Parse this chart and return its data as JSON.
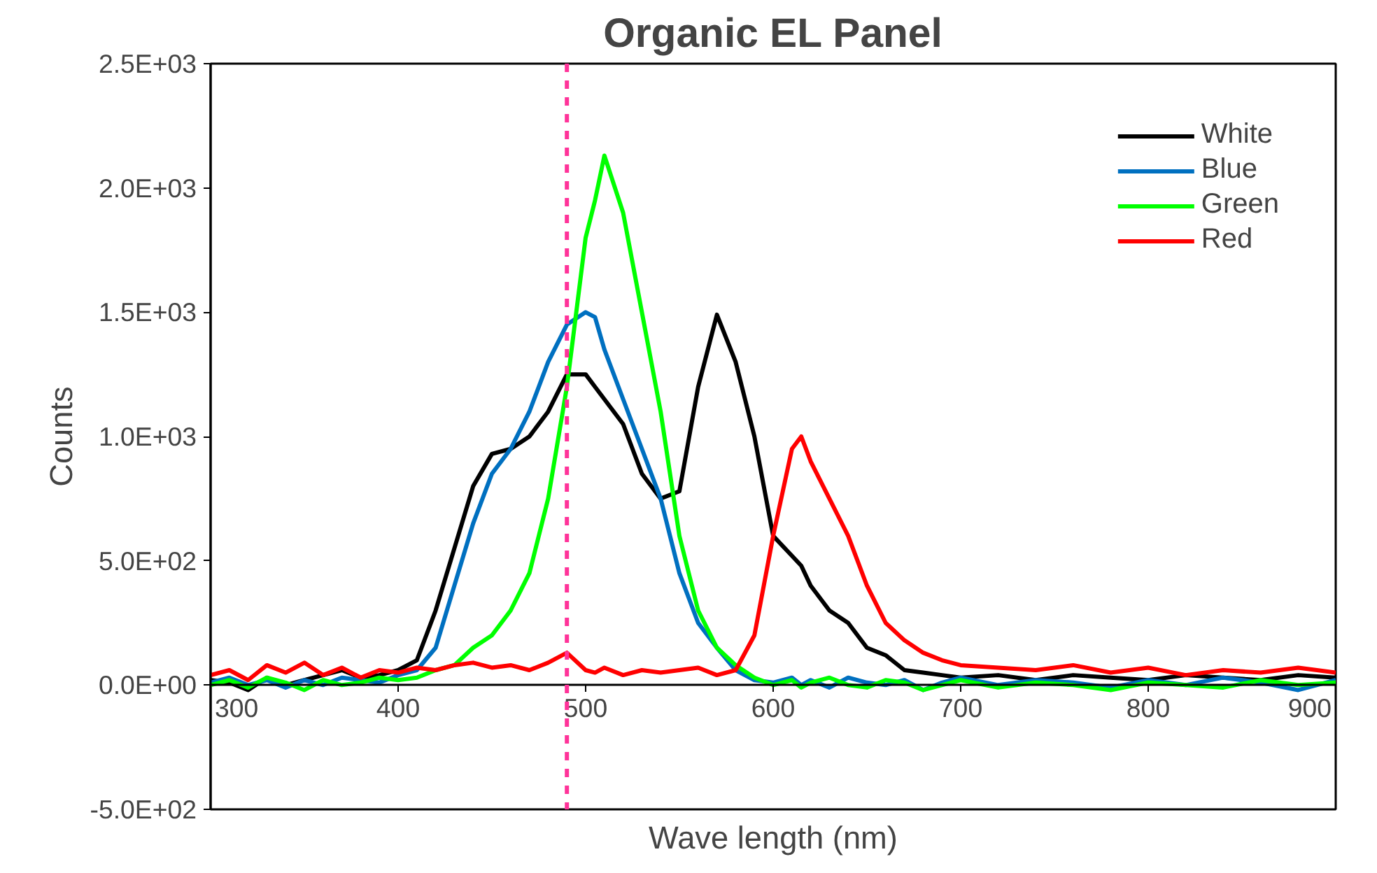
{
  "chart_data": {
    "type": "line",
    "title": "Organic EL Panel",
    "xlabel": "Wave length (nm)",
    "ylabel": "Counts",
    "x": [
      300,
      310,
      320,
      330,
      340,
      350,
      360,
      370,
      380,
      390,
      400,
      410,
      420,
      430,
      440,
      450,
      460,
      470,
      480,
      490,
      500,
      505,
      510,
      520,
      530,
      540,
      550,
      560,
      570,
      580,
      590,
      600,
      610,
      615,
      620,
      630,
      640,
      650,
      660,
      670,
      680,
      690,
      700,
      720,
      740,
      760,
      780,
      800,
      820,
      840,
      860,
      880,
      900
    ],
    "series": [
      {
        "name": "White",
        "color": "#000000",
        "values": [
          20,
          10,
          -20,
          30,
          0,
          20,
          40,
          60,
          30,
          40,
          60,
          100,
          300,
          550,
          800,
          930,
          950,
          1000,
          1100,
          1250,
          1250,
          1200,
          1150,
          1050,
          850,
          750,
          780,
          1200,
          1490,
          1300,
          1000,
          600,
          520,
          480,
          400,
          300,
          250,
          150,
          120,
          60,
          50,
          40,
          30,
          40,
          20,
          40,
          30,
          20,
          40,
          30,
          20,
          40,
          30
        ]
      },
      {
        "name": "Blue",
        "color": "#0070c0",
        "values": [
          10,
          30,
          0,
          20,
          -10,
          20,
          0,
          30,
          20,
          10,
          40,
          60,
          150,
          400,
          650,
          850,
          950,
          1100,
          1300,
          1450,
          1500,
          1480,
          1350,
          1150,
          950,
          750,
          450,
          250,
          150,
          60,
          20,
          10,
          30,
          0,
          20,
          -10,
          30,
          10,
          0,
          20,
          -20,
          10,
          30,
          0,
          20,
          10,
          -10,
          20,
          0,
          30,
          10,
          -20,
          20
        ]
      },
      {
        "name": "Green",
        "color": "#00ff00",
        "values": [
          0,
          20,
          -10,
          30,
          10,
          -20,
          20,
          0,
          10,
          30,
          20,
          30,
          60,
          80,
          150,
          200,
          300,
          450,
          750,
          1200,
          1800,
          1950,
          2130,
          1900,
          1500,
          1100,
          600,
          300,
          150,
          80,
          30,
          0,
          20,
          -10,
          10,
          30,
          0,
          -10,
          20,
          10,
          -20,
          0,
          20,
          -10,
          10,
          0,
          -20,
          10,
          0,
          -10,
          20,
          0,
          10
        ]
      },
      {
        "name": "Red",
        "color": "#ff0000",
        "values": [
          40,
          60,
          20,
          80,
          50,
          90,
          40,
          70,
          30,
          60,
          50,
          70,
          60,
          80,
          90,
          70,
          80,
          60,
          90,
          130,
          60,
          50,
          70,
          40,
          60,
          50,
          60,
          70,
          40,
          60,
          200,
          600,
          950,
          1000,
          900,
          750,
          600,
          400,
          250,
          180,
          130,
          100,
          80,
          70,
          60,
          80,
          50,
          70,
          40,
          60,
          50,
          70,
          50
        ]
      }
    ],
    "xlim": [
      300,
      900
    ],
    "ylim": [
      -500,
      2500
    ],
    "xticks": [
      300,
      400,
      500,
      600,
      700,
      800,
      900
    ],
    "yticks": [
      {
        "value": -500,
        "label": "-5.0E+02"
      },
      {
        "value": 0,
        "label": "0.0E+00"
      },
      {
        "value": 500,
        "label": "5.0E+02"
      },
      {
        "value": 1000,
        "label": "1.0E+03"
      },
      {
        "value": 1500,
        "label": "1.5E+03"
      },
      {
        "value": 2000,
        "label": "2.0E+03"
      },
      {
        "value": 2500,
        "label": "2.5E+03"
      }
    ],
    "ref_lines": [
      {
        "axis": "x",
        "value": 490,
        "color": "#ff3399",
        "line_style": "dashed"
      }
    ],
    "legend": "top right",
    "grid": false
  }
}
